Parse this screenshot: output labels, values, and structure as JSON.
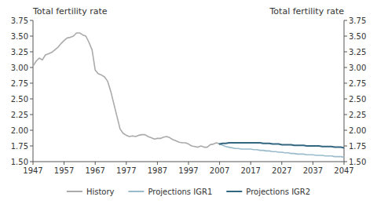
{
  "chart_data": {
    "type": "line",
    "ylabel": "Total fertility rate",
    "y2label": "Total fertility rate",
    "xlim": [
      1947,
      2047
    ],
    "xticks": [
      1947,
      1957,
      1967,
      1977,
      1987,
      1997,
      2007,
      2017,
      2027,
      2037,
      2047
    ],
    "ylim": [
      1.5,
      3.75
    ],
    "yticks": [
      {
        "value": 1.5,
        "label": "1.50"
      },
      {
        "value": 1.75,
        "label": "1.75"
      },
      {
        "value": 2.0,
        "label": "2.00"
      },
      {
        "value": 2.25,
        "label": "2.25"
      },
      {
        "value": 2.5,
        "label": "2.50"
      },
      {
        "value": 2.75,
        "label": "2.75"
      },
      {
        "value": 3.0,
        "label": "3.00"
      },
      {
        "value": 3.25,
        "label": "3.25"
      },
      {
        "value": 3.5,
        "label": "3.50"
      },
      {
        "value": 3.75,
        "label": "3.75"
      }
    ],
    "y2lim": [
      1.5,
      3.75
    ],
    "y2ticks": [
      {
        "value": 1.5,
        "label": "1.50"
      },
      {
        "value": 1.75,
        "label": "1.75"
      },
      {
        "value": 2.0,
        "label": "2.00"
      },
      {
        "value": 2.25,
        "label": "2.25"
      },
      {
        "value": 2.5,
        "label": "2.50"
      },
      {
        "value": 2.75,
        "label": "2.75"
      },
      {
        "value": 3.0,
        "label": "3.00"
      },
      {
        "value": 3.25,
        "label": "3.25"
      },
      {
        "value": 3.5,
        "label": "3.50"
      },
      {
        "value": 3.75,
        "label": "3.75"
      }
    ],
    "grid": false,
    "legend": "bottom",
    "series": [
      {
        "name": "History",
        "color": "#aaaaaa",
        "x": [
          1947,
          1948,
          1949,
          1950,
          1951,
          1952,
          1953,
          1954,
          1955,
          1956,
          1957,
          1958,
          1959,
          1960,
          1961,
          1962,
          1963,
          1964,
          1965,
          1966,
          1967,
          1968,
          1969,
          1970,
          1971,
          1972,
          1973,
          1974,
          1975,
          1976,
          1977,
          1978,
          1979,
          1980,
          1981,
          1982,
          1983,
          1984,
          1985,
          1986,
          1987,
          1988,
          1989,
          1990,
          1991,
          1992,
          1993,
          1994,
          1995,
          1996,
          1997,
          1998,
          1999,
          2000,
          2001,
          2002,
          2003,
          2004,
          2005,
          2006,
          2007
        ],
        "values": [
          3.02,
          3.1,
          3.15,
          3.12,
          3.2,
          3.22,
          3.24,
          3.28,
          3.32,
          3.38,
          3.43,
          3.47,
          3.48,
          3.5,
          3.55,
          3.55,
          3.52,
          3.5,
          3.4,
          3.28,
          2.96,
          2.9,
          2.88,
          2.85,
          2.78,
          2.62,
          2.42,
          2.22,
          2.02,
          1.95,
          1.92,
          1.9,
          1.91,
          1.9,
          1.92,
          1.93,
          1.93,
          1.9,
          1.88,
          1.86,
          1.87,
          1.87,
          1.89,
          1.9,
          1.88,
          1.85,
          1.83,
          1.81,
          1.8,
          1.8,
          1.78,
          1.75,
          1.74,
          1.73,
          1.75,
          1.73,
          1.73,
          1.77,
          1.78,
          1.8,
          1.78
        ]
      },
      {
        "name": "Projections IGR1",
        "color": "#99bbcc",
        "x": [
          2007,
          2008,
          2009,
          2010,
          2011,
          2012,
          2013,
          2014,
          2015,
          2016,
          2017,
          2018,
          2019,
          2020,
          2021,
          2022,
          2023,
          2024,
          2025,
          2026,
          2027,
          2028,
          2029,
          2030,
          2031,
          2032,
          2033,
          2034,
          2035,
          2036,
          2037,
          2038,
          2039,
          2040,
          2041,
          2042,
          2043,
          2044,
          2045,
          2046,
          2047
        ],
        "values": [
          1.78,
          1.76,
          1.74,
          1.73,
          1.72,
          1.71,
          1.71,
          1.7,
          1.7,
          1.7,
          1.7,
          1.69,
          1.69,
          1.68,
          1.68,
          1.67,
          1.67,
          1.66,
          1.66,
          1.65,
          1.65,
          1.64,
          1.64,
          1.63,
          1.63,
          1.62,
          1.62,
          1.62,
          1.61,
          1.61,
          1.61,
          1.6,
          1.6,
          1.6,
          1.59,
          1.59,
          1.59,
          1.58,
          1.58,
          1.58,
          1.57
        ]
      },
      {
        "name": "Projections IGR2",
        "color": "#336680",
        "x": [
          2007,
          2008,
          2009,
          2010,
          2011,
          2012,
          2013,
          2014,
          2015,
          2016,
          2017,
          2018,
          2019,
          2020,
          2021,
          2022,
          2023,
          2024,
          2025,
          2026,
          2027,
          2028,
          2029,
          2030,
          2031,
          2032,
          2033,
          2034,
          2035,
          2036,
          2037,
          2038,
          2039,
          2040,
          2041,
          2042,
          2043,
          2044,
          2045,
          2046,
          2047
        ],
        "values": [
          1.78,
          1.79,
          1.79,
          1.8,
          1.8,
          1.8,
          1.8,
          1.8,
          1.8,
          1.8,
          1.8,
          1.8,
          1.8,
          1.8,
          1.79,
          1.79,
          1.79,
          1.78,
          1.78,
          1.78,
          1.77,
          1.77,
          1.77,
          1.77,
          1.76,
          1.76,
          1.76,
          1.76,
          1.75,
          1.75,
          1.75,
          1.75,
          1.75,
          1.74,
          1.74,
          1.74,
          1.74,
          1.73,
          1.73,
          1.73,
          1.72
        ]
      }
    ]
  }
}
